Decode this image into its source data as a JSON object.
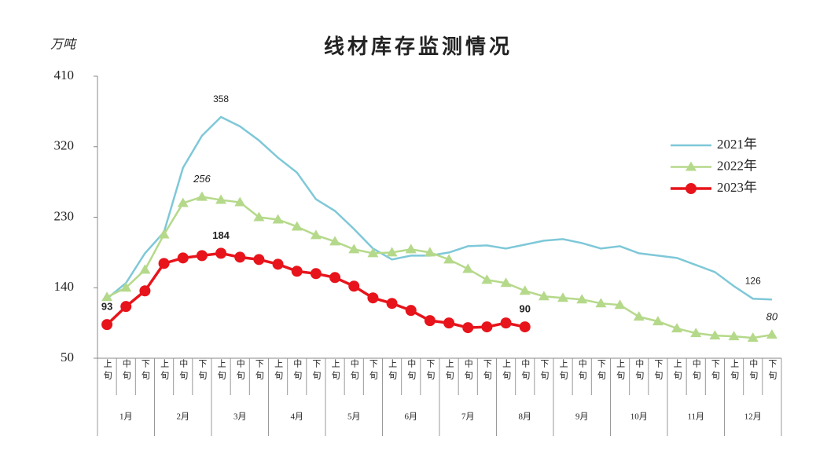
{
  "chart_data": {
    "type": "line",
    "title": "线材库存监测情况",
    "y_unit": "万吨",
    "categories": [
      "上旬",
      "中旬",
      "下旬",
      "上旬",
      "中旬",
      "下旬",
      "上旬",
      "中旬",
      "下旬",
      "上旬",
      "中旬",
      "下旬",
      "上旬",
      "中旬",
      "下旬",
      "上旬",
      "中旬",
      "下旬",
      "上旬",
      "中旬",
      "下旬",
      "上旬",
      "中旬",
      "下旬",
      "上旬",
      "中旬",
      "下旬",
      "上旬",
      "中旬",
      "下旬",
      "上旬",
      "中旬",
      "下旬",
      "上旬",
      "中旬",
      "下旬"
    ],
    "months": [
      "1月",
      "2月",
      "3月",
      "4月",
      "5月",
      "6月",
      "7月",
      "8月",
      "9月",
      "10月",
      "11月",
      "12月"
    ],
    "ylim": [
      50,
      410
    ],
    "yticks": [
      50,
      140,
      230,
      320,
      410
    ],
    "legend": "right",
    "series": [
      {
        "name": "2021年",
        "color": "#7ec8d8",
        "marker": "none",
        "labeled_points": [
          6,
          34
        ],
        "label_style": "normal",
        "values": [
          126,
          146,
          184,
          211,
          293,
          334,
          358,
          346,
          328,
          306,
          287,
          253,
          238,
          215,
          190,
          176,
          181,
          181,
          185,
          193,
          194,
          190,
          195,
          200,
          202,
          197,
          190,
          193,
          184,
          181,
          178,
          169,
          160,
          142,
          126,
          125
        ]
      },
      {
        "name": "2022年",
        "color": "#b5d98a",
        "marker": "triangle",
        "labeled_points": [
          5,
          35
        ],
        "label_style": "italic",
        "values": [
          128,
          140,
          163,
          208,
          248,
          256,
          252,
          249,
          230,
          227,
          218,
          207,
          199,
          189,
          184,
          185,
          189,
          185,
          176,
          164,
          150,
          146,
          136,
          129,
          127,
          125,
          120,
          118,
          103,
          97,
          88,
          82,
          79,
          78,
          76,
          80
        ]
      },
      {
        "name": "2023年",
        "color": "#e8141b",
        "marker": "circle",
        "labeled_points": [
          0,
          6,
          22
        ],
        "label_style": "bold",
        "values": [
          93,
          116,
          136,
          171,
          178,
          181,
          184,
          179,
          176,
          170,
          161,
          158,
          153,
          142,
          127,
          120,
          111,
          98,
          95,
          89,
          90,
          95,
          90,
          null,
          null,
          null,
          null,
          null,
          null,
          null,
          null,
          null,
          null,
          null,
          null,
          null
        ]
      }
    ]
  }
}
